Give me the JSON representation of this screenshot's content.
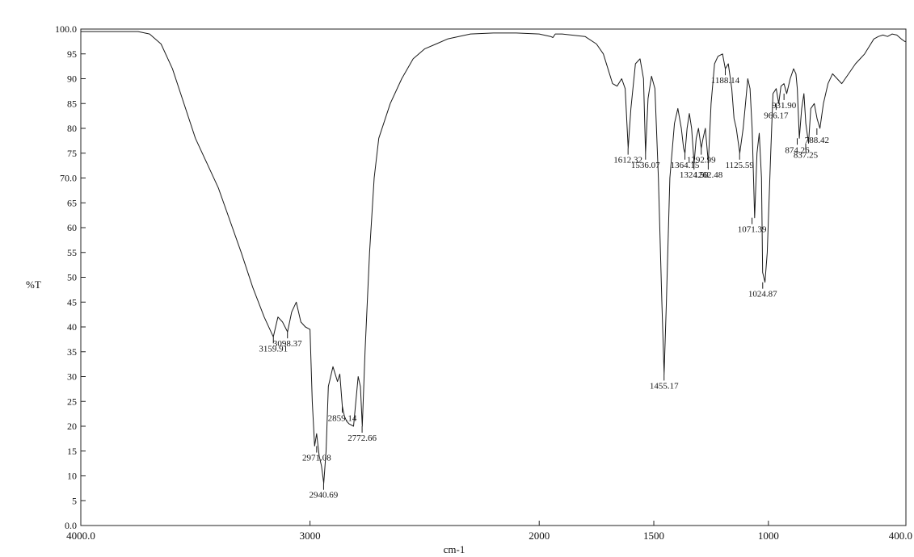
{
  "chart_data": {
    "type": "line",
    "title": "",
    "xlabel": "cm-1",
    "ylabel": "%T",
    "xlim": [
      4000,
      400
    ],
    "ylim": [
      0,
      100
    ],
    "x_reversed": true,
    "grid": false,
    "legend": "none",
    "x_ticks": [
      {
        "value": 4000,
        "label": "4000.0"
      },
      {
        "value": 3000,
        "label": "3000"
      },
      {
        "value": 2000,
        "label": "2000"
      },
      {
        "value": 1500,
        "label": "1500"
      },
      {
        "value": 1000,
        "label": "1000"
      },
      {
        "value": 400,
        "label": "400.0"
      }
    ],
    "y_ticks": [
      {
        "value": 0,
        "label": "0.0"
      },
      {
        "value": 5,
        "label": "5"
      },
      {
        "value": 10,
        "label": "10"
      },
      {
        "value": 15,
        "label": "15"
      },
      {
        "value": 20,
        "label": "20"
      },
      {
        "value": 25,
        "label": "25"
      },
      {
        "value": 30,
        "label": "30"
      },
      {
        "value": 35,
        "label": "35"
      },
      {
        "value": 40,
        "label": "40"
      },
      {
        "value": 45,
        "label": "45"
      },
      {
        "value": 50,
        "label": "50"
      },
      {
        "value": 55,
        "label": "55"
      },
      {
        "value": 60,
        "label": "60"
      },
      {
        "value": 65,
        "label": "65"
      },
      {
        "value": 70,
        "label": "70.0"
      },
      {
        "value": 75,
        "label": "75"
      },
      {
        "value": 80,
        "label": "80"
      },
      {
        "value": 85,
        "label": "85"
      },
      {
        "value": 90,
        "label": "90"
      },
      {
        "value": 95,
        "label": "95"
      },
      {
        "value": 100,
        "label": "100.0"
      }
    ],
    "series": [
      {
        "x": [
          4000,
          3900,
          3750,
          3700,
          3650,
          3600,
          3500,
          3400,
          3300,
          3250,
          3200,
          3160,
          3140,
          3120,
          3098,
          3080,
          3060,
          3040,
          3020,
          3000,
          2990,
          2980,
          2971,
          2960,
          2950,
          2940,
          2930,
          2920,
          2900,
          2880,
          2870,
          2859,
          2850,
          2840,
          2830,
          2810,
          2790,
          2780,
          2772,
          2760,
          2740,
          2720,
          2700,
          2650,
          2600,
          2550,
          2500,
          2450,
          2400,
          2300,
          2200,
          2100,
          2000,
          1950,
          1940,
          1930,
          1900,
          1800,
          1750,
          1720,
          1700,
          1680,
          1660,
          1640,
          1625,
          1612,
          1600,
          1580,
          1560,
          1545,
          1536,
          1525,
          1510,
          1495,
          1480,
          1465,
          1455,
          1445,
          1430,
          1410,
          1395,
          1380,
          1370,
          1364,
          1355,
          1345,
          1335,
          1324,
          1315,
          1305,
          1293,
          1285,
          1275,
          1262,
          1250,
          1235,
          1220,
          1200,
          1188,
          1175,
          1160,
          1150,
          1140,
          1125,
          1110,
          1100,
          1090,
          1080,
          1071,
          1060,
          1050,
          1040,
          1030,
          1025,
          1015,
          1005,
          990,
          980,
          966,
          955,
          945,
          932,
          920,
          905,
          890,
          880,
          874,
          865,
          855,
          845,
          837,
          825,
          815,
          800,
          788,
          775,
          760,
          740,
          720,
          700,
          680,
          650,
          620,
          600,
          580,
          560,
          540,
          520,
          500,
          480,
          460,
          440,
          420,
          405,
          400
        ],
        "values": [
          99.5,
          99.5,
          99.5,
          99.0,
          97.0,
          92.0,
          78.0,
          68.0,
          55.0,
          48.0,
          42.0,
          38.0,
          42.0,
          41.0,
          39.0,
          43.0,
          45.0,
          41.0,
          40.0,
          39.5,
          25.0,
          16.0,
          18.5,
          14.0,
          12.0,
          8.5,
          15.0,
          28.0,
          32.0,
          29.0,
          30.5,
          24.0,
          22.0,
          21.0,
          20.5,
          20.0,
          30.0,
          28.0,
          20.0,
          35.0,
          55.0,
          70.0,
          78.0,
          85.0,
          90.0,
          94.0,
          96.0,
          97.0,
          98.0,
          99.0,
          99.2,
          99.2,
          99.0,
          98.5,
          98.3,
          99.0,
          99.0,
          98.5,
          97.0,
          95.0,
          92.0,
          89.0,
          88.5,
          90.0,
          88.0,
          76.0,
          84.0,
          93.0,
          94.0,
          90.0,
          75.0,
          86.0,
          90.5,
          88.0,
          70.0,
          45.0,
          30.5,
          45.0,
          70.0,
          81.0,
          84.0,
          80.0,
          76.0,
          75.0,
          80.0,
          83.0,
          80.0,
          73.0,
          78.0,
          80.0,
          76.0,
          78.0,
          80.0,
          73.0,
          85.0,
          93.0,
          94.5,
          95.0,
          92.0,
          93.0,
          88.0,
          82.0,
          80.0,
          75.0,
          80.0,
          85.0,
          90.0,
          88.0,
          80.0,
          62.0,
          75.0,
          79.0,
          70.0,
          51.0,
          49.0,
          55.0,
          75.0,
          87.0,
          88.0,
          85.0,
          88.5,
          89.0,
          87.0,
          90.0,
          92.0,
          91.0,
          88.0,
          78.0,
          84.0,
          87.0,
          81.0,
          77.0,
          84.0,
          85.0,
          82.0,
          80.0,
          85.0,
          89.0,
          91.0,
          90.0,
          89.0,
          91.0,
          93.0,
          94.0,
          95.0,
          96.5,
          98.0,
          98.5,
          98.8,
          98.5,
          99.0,
          98.8,
          98.0,
          97.5,
          97.5
        ]
      }
    ],
    "peak_labels": [
      {
        "x": 3159.91,
        "y": 38.0,
        "label": "3159.91"
      },
      {
        "x": 3098.37,
        "y": 39.0,
        "label": "3098.37"
      },
      {
        "x": 2971.08,
        "y": 16.0,
        "label": "2971.08"
      },
      {
        "x": 2940.69,
        "y": 8.5,
        "label": "2940.69"
      },
      {
        "x": 2859.14,
        "y": 24.0,
        "label": "2859.14"
      },
      {
        "x": 2772.66,
        "y": 20.0,
        "label": "2772.66"
      },
      {
        "x": 1612.32,
        "y": 76.0,
        "label": "1612.32"
      },
      {
        "x": 1536.07,
        "y": 75.0,
        "label": "1536.07"
      },
      {
        "x": 1455.17,
        "y": 30.5,
        "label": "1455.17"
      },
      {
        "x": 1364.15,
        "y": 75.0,
        "label": "1364.15"
      },
      {
        "x": 1324.5,
        "y": 73.0,
        "label": "1324.50"
      },
      {
        "x": 1292.99,
        "y": 76.0,
        "label": "1292.99"
      },
      {
        "x": 1262.48,
        "y": 73.0,
        "label": "1262.48"
      },
      {
        "x": 1188.14,
        "y": 92.0,
        "label": "1188.14"
      },
      {
        "x": 1125.59,
        "y": 75.0,
        "label": "1125.59"
      },
      {
        "x": 1071.39,
        "y": 62.0,
        "label": "1071.39"
      },
      {
        "x": 1024.87,
        "y": 49.0,
        "label": "1024.87"
      },
      {
        "x": 966.17,
        "y": 85.0,
        "label": "966.17"
      },
      {
        "x": 931.9,
        "y": 87.0,
        "label": "931.90"
      },
      {
        "x": 874.26,
        "y": 78.0,
        "label": "874.26"
      },
      {
        "x": 837.25,
        "y": 77.0,
        "label": "837.25"
      },
      {
        "x": 788.42,
        "y": 80.0,
        "label": "788.42"
      }
    ]
  }
}
